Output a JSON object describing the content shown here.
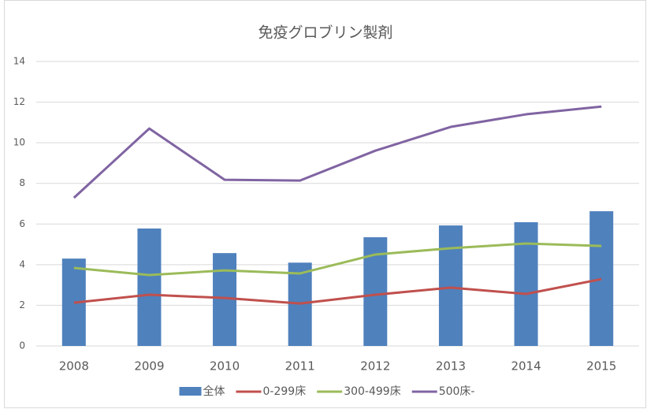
{
  "chart_data": {
    "type": "bar",
    "title": "免疫グロブリン製剤",
    "categories": [
      "2008",
      "2009",
      "2010",
      "2011",
      "2012",
      "2013",
      "2014",
      "2015"
    ],
    "series": [
      {
        "name": "全体",
        "type": "bar",
        "color": "#4f81bd",
        "values": [
          4.3,
          5.78,
          4.57,
          4.1,
          5.35,
          5.93,
          6.09,
          6.63
        ]
      },
      {
        "name": "0-299床",
        "type": "line",
        "color": "#c0504d",
        "values": [
          2.13,
          2.52,
          2.36,
          2.09,
          2.52,
          2.87,
          2.56,
          3.29
        ]
      },
      {
        "name": "300-499床",
        "type": "line",
        "color": "#9bbb59",
        "values": [
          3.84,
          3.49,
          3.72,
          3.57,
          4.5,
          4.81,
          5.04,
          4.92
        ]
      },
      {
        "name": "500床-",
        "type": "line",
        "color": "#8064a2",
        "values": [
          7.29,
          10.7,
          8.18,
          8.14,
          9.61,
          10.78,
          11.4,
          11.78
        ]
      }
    ],
    "ylim": [
      0,
      14
    ],
    "yticks": [
      0,
      2,
      4,
      6,
      8,
      10,
      12,
      14
    ],
    "grid": true,
    "legend": "bottom"
  }
}
